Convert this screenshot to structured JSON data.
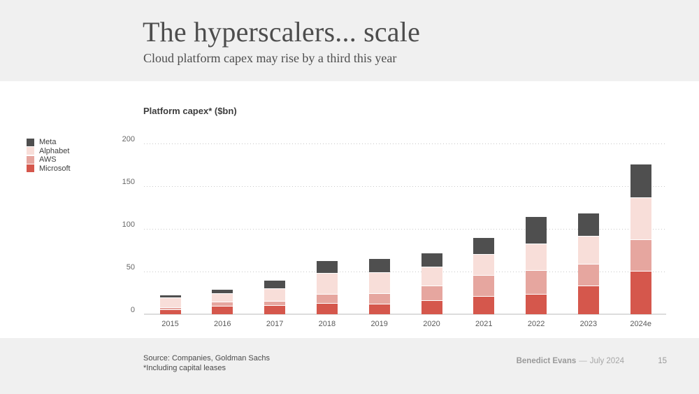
{
  "slide": {
    "title": "The hyperscalers... scale",
    "subtitle": "Cloud platform capex may rise by a third this year",
    "header_background": "#f0f0f0",
    "footer": {
      "source_line1": "Source: Companies, Goldman Sachs",
      "source_line2": "*Including capital leases",
      "author": "Benedict Evans",
      "separator": "—",
      "date": "July 2024",
      "page_number": "15"
    }
  },
  "chart_data": {
    "type": "bar",
    "stacked": true,
    "title": "Platform capex* ($bn)",
    "categories": [
      "2015",
      "2016",
      "2017",
      "2018",
      "2019",
      "2020",
      "2021",
      "2022",
      "2023",
      "2024e"
    ],
    "series": [
      {
        "name": "Microsoft",
        "color": "#d5574c",
        "values": [
          6,
          9.5,
          11,
          13,
          12.5,
          16.5,
          21.5,
          23.5,
          34,
          51
        ]
      },
      {
        "name": "AWS",
        "color": "#e6a69f",
        "values": [
          2,
          5,
          5,
          10.5,
          12,
          17,
          24.5,
          28,
          25,
          37
        ]
      },
      {
        "name": "Alphabet",
        "color": "#f8ded9",
        "values": [
          12,
          10,
          14.5,
          25,
          24.5,
          22.5,
          24.5,
          31,
          32.5,
          49
        ]
      },
      {
        "name": "Meta",
        "color": "#4f4f4f",
        "values": [
          2,
          4.5,
          8.5,
          13.5,
          15.5,
          15.5,
          18.5,
          31.5,
          26.5,
          38.5
        ]
      }
    ],
    "totals": [
      22,
      29,
      39,
      62,
      64.5,
      71.5,
      89,
      114,
      118,
      175.5
    ],
    "legend_order": [
      "Meta",
      "Alphabet",
      "AWS",
      "Microsoft"
    ],
    "y_ticks": [
      0,
      50,
      100,
      150,
      200
    ],
    "ylim": [
      0,
      200
    ],
    "xlabel": "",
    "ylabel": "",
    "grid": "dotted-horizontal",
    "legend_position": "left-outside",
    "gridline_color": "#c8c8c8",
    "baseline_color": "#dcdcdc"
  }
}
